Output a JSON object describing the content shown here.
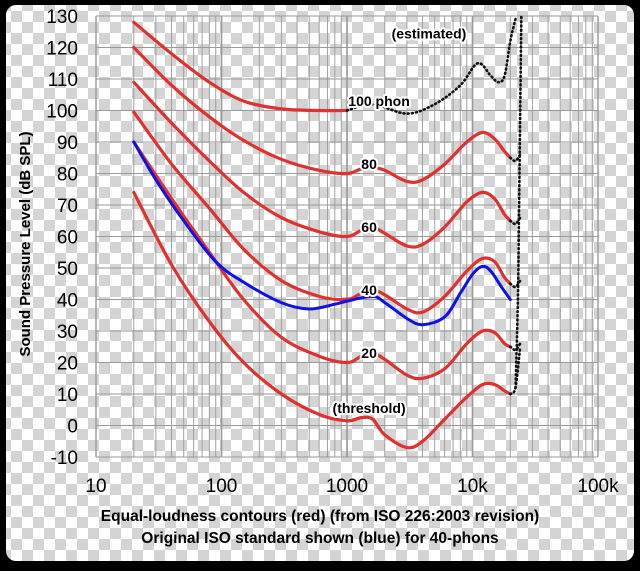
{
  "colors": {
    "contour": "#e03030",
    "iso_original": "#1010e8",
    "estimated": "#111111",
    "grid": "#9a9a9a",
    "frame_border": "#000000"
  },
  "chart_data": {
    "type": "line",
    "xscale": "log",
    "xlim": [
      10,
      100000
    ],
    "ylim": [
      -10,
      130
    ],
    "x_ticks": [
      {
        "value": 10,
        "label": "10"
      },
      {
        "value": 100,
        "label": "100"
      },
      {
        "value": 1000,
        "label": "1000"
      },
      {
        "value": 10000,
        "label": "10k"
      },
      {
        "value": 100000,
        "label": "100k"
      }
    ],
    "y_ticks": [
      {
        "value": 130,
        "label": "130"
      },
      {
        "value": 120,
        "label": "120"
      },
      {
        "value": 110,
        "label": "110"
      },
      {
        "value": 100,
        "label": "100"
      },
      {
        "value": 90,
        "label": "90"
      },
      {
        "value": 80,
        "label": "80"
      },
      {
        "value": 70,
        "label": "70"
      },
      {
        "value": 60,
        "label": "60"
      },
      {
        "value": 50,
        "label": "50"
      },
      {
        "value": 40,
        "label": "40"
      },
      {
        "value": 30,
        "label": "30"
      },
      {
        "value": 20,
        "label": "20"
      },
      {
        "value": 10,
        "label": "10"
      },
      {
        "value": 0,
        "label": "0"
      },
      {
        "value": -10,
        "label": "-10"
      }
    ],
    "ylabel": "Sound Pressure Level (dB SPL)",
    "caption_line1": "Equal-loudness contours (red) (from ISO 226:2003 revision)",
    "caption_line2": "Original ISO standard shown (blue) for 40-phons",
    "series": [
      {
        "name": "100 phon",
        "style": "red",
        "label": "100 phon",
        "label_at": [
          1800,
          103
        ],
        "points": [
          [
            20,
            128
          ],
          [
            40,
            118
          ],
          [
            80,
            109
          ],
          [
            150,
            103
          ],
          [
            300,
            100.5
          ],
          [
            600,
            100
          ],
          [
            1000,
            100
          ]
        ]
      },
      {
        "name": "100 phon estimated",
        "style": "dotted",
        "points": [
          [
            1000,
            100
          ],
          [
            1600,
            102
          ],
          [
            3000,
            99
          ],
          [
            5000,
            102
          ],
          [
            8000,
            108
          ],
          [
            11000,
            115
          ],
          [
            14000,
            111
          ],
          [
            16000,
            109
          ],
          [
            18000,
            111
          ],
          [
            20000,
            122
          ],
          [
            22000,
            129
          ]
        ]
      },
      {
        "name": "80 phon",
        "style": "red",
        "label": "80",
        "label_at": [
          1500,
          83
        ],
        "points": [
          [
            20,
            120
          ],
          [
            40,
            108
          ],
          [
            80,
            98
          ],
          [
            150,
            90.5
          ],
          [
            300,
            84.5
          ],
          [
            600,
            81
          ],
          [
            1000,
            80
          ],
          [
            1300,
            81.5
          ],
          [
            1600,
            82
          ],
          [
            2000,
            81
          ],
          [
            3000,
            77.5
          ],
          [
            4000,
            78
          ],
          [
            6000,
            83
          ],
          [
            9000,
            90
          ],
          [
            12000,
            93
          ],
          [
            15000,
            91
          ],
          [
            18000,
            87
          ],
          [
            20000,
            85
          ]
        ]
      },
      {
        "name": "80 phon estimated",
        "style": "dotted",
        "points": [
          [
            20000,
            85
          ],
          [
            22000,
            84
          ],
          [
            24000,
            86
          ]
        ]
      },
      {
        "name": "60 phon",
        "style": "red",
        "label": "60",
        "label_at": [
          1500,
          63
        ],
        "points": [
          [
            20,
            109
          ],
          [
            40,
            96
          ],
          [
            80,
            84
          ],
          [
            150,
            74
          ],
          [
            300,
            66
          ],
          [
            600,
            61.5
          ],
          [
            1000,
            60
          ],
          [
            1300,
            62
          ],
          [
            1600,
            63
          ],
          [
            2000,
            61
          ],
          [
            3000,
            57
          ],
          [
            4000,
            57.5
          ],
          [
            6000,
            63
          ],
          [
            9000,
            71
          ],
          [
            12000,
            74
          ],
          [
            15000,
            72
          ],
          [
            18000,
            67
          ],
          [
            20000,
            65
          ]
        ]
      },
      {
        "name": "60 phon estimated",
        "style": "dotted",
        "points": [
          [
            20000,
            65
          ],
          [
            22000,
            64
          ],
          [
            24000,
            66
          ]
        ]
      },
      {
        "name": "40 phon",
        "style": "red",
        "label": "40",
        "label_at": [
          1500,
          43
        ],
        "points": [
          [
            20,
            99.5
          ],
          [
            40,
            83
          ],
          [
            80,
            69
          ],
          [
            150,
            56
          ],
          [
            300,
            46
          ],
          [
            600,
            41
          ],
          [
            1000,
            40
          ],
          [
            1300,
            42
          ],
          [
            1600,
            43
          ],
          [
            2000,
            41.5
          ],
          [
            3000,
            37
          ],
          [
            4000,
            36
          ],
          [
            6000,
            41
          ],
          [
            9000,
            49
          ],
          [
            12000,
            53
          ],
          [
            15000,
            52
          ],
          [
            18000,
            47
          ],
          [
            20000,
            45
          ]
        ]
      },
      {
        "name": "40 phon estimated",
        "style": "dotted",
        "points": [
          [
            20000,
            45
          ],
          [
            22000,
            44
          ],
          [
            24000,
            46
          ]
        ]
      },
      {
        "name": "20 phon",
        "style": "red",
        "label": "20",
        "label_at": [
          1500,
          23
        ],
        "points": [
          [
            20,
            90
          ],
          [
            40,
            72
          ],
          [
            80,
            55
          ],
          [
            150,
            40
          ],
          [
            300,
            28
          ],
          [
            600,
            22
          ],
          [
            1000,
            20
          ],
          [
            1300,
            22
          ],
          [
            1600,
            23
          ],
          [
            2000,
            21
          ],
          [
            3000,
            16
          ],
          [
            4000,
            15
          ],
          [
            6000,
            18
          ],
          [
            9000,
            26
          ],
          [
            12000,
            30
          ],
          [
            15000,
            29.5
          ],
          [
            18000,
            26
          ],
          [
            20000,
            25
          ]
        ]
      },
      {
        "name": "20 phon estimated",
        "style": "dotted",
        "points": [
          [
            20000,
            25
          ],
          [
            22000,
            24
          ],
          [
            24000,
            26
          ]
        ]
      },
      {
        "name": "threshold",
        "style": "red",
        "label": "(threshold)",
        "label_at": [
          1500,
          5.5
        ],
        "points": [
          [
            20,
            74
          ],
          [
            40,
            51
          ],
          [
            80,
            33
          ],
          [
            150,
            20
          ],
          [
            300,
            10
          ],
          [
            600,
            3.5
          ],
          [
            1000,
            1.5
          ],
          [
            1300,
            2.5
          ],
          [
            1600,
            2
          ],
          [
            2000,
            -3
          ],
          [
            3000,
            -7
          ],
          [
            4000,
            -5
          ],
          [
            6000,
            2
          ],
          [
            9000,
            9
          ],
          [
            12000,
            13
          ],
          [
            15000,
            13
          ],
          [
            18000,
            11
          ],
          [
            20000,
            10
          ]
        ]
      },
      {
        "name": "threshold estimated",
        "style": "dotted",
        "points": [
          [
            20000,
            10
          ],
          [
            22000,
            12
          ],
          [
            24000,
            25
          ]
        ]
      },
      {
        "name": "estimated high-frequency edge",
        "style": "dotted",
        "label": "(estimated)",
        "label_at": [
          4500,
          124.5
        ],
        "points": [
          [
            22000,
            12
          ],
          [
            23000,
            40
          ],
          [
            23500,
            70
          ],
          [
            24000,
            100
          ],
          [
            24500,
            130
          ]
        ]
      },
      {
        "name": "40 phon original ISO",
        "style": "blue",
        "points": [
          [
            20,
            90
          ],
          [
            30,
            78
          ],
          [
            50,
            65
          ],
          [
            90,
            52
          ],
          [
            150,
            45.5
          ],
          [
            300,
            39
          ],
          [
            500,
            37
          ],
          [
            800,
            38.5
          ],
          [
            1000,
            39.5
          ],
          [
            1600,
            41
          ],
          [
            2000,
            39
          ],
          [
            3000,
            34
          ],
          [
            4000,
            32
          ],
          [
            6000,
            34.5
          ],
          [
            8000,
            42
          ],
          [
            10000,
            48
          ],
          [
            12000,
            50.5
          ],
          [
            14000,
            49
          ],
          [
            17000,
            44
          ],
          [
            20000,
            40
          ]
        ]
      }
    ]
  }
}
